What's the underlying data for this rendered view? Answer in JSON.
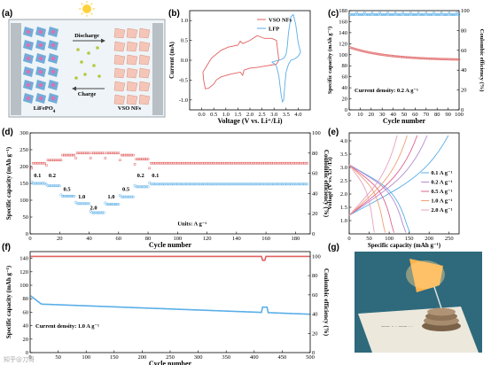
{
  "panels": {
    "a": "(a)",
    "b": "(b)",
    "c": "(c)",
    "d": "(d)",
    "e": "(e)",
    "f": "(f)",
    "g": "(g)"
  },
  "schematic": {
    "left_label": "LiFePO",
    "left_sub": "4",
    "right_label": "VSO NFs",
    "discharge": "Discharge",
    "charge": "Charge",
    "colors": {
      "left": "#5a9fd4",
      "right": "#f5c6b8",
      "frame": "#9aa3a8",
      "bg": "#eef4f7",
      "sun": "#ffd23c"
    }
  },
  "photo": {
    "colors": {
      "table": "#2e6a7c",
      "paper": "#ece8dc",
      "lamp": "#ffb34d",
      "disc": "#a88c6e"
    }
  },
  "watermark": "知乎@刀哥",
  "chart_data": [
    {
      "id": "b",
      "type": "line",
      "xlabel": "Voltage (V vs. Li⁺/Li)",
      "ylabel": "Current (mA)",
      "xlim": [
        -0.5,
        4.5
      ],
      "ylim": [
        -1.25,
        1.25
      ],
      "xticks": [
        "0.0",
        "0.5",
        "1.0",
        "1.5",
        "2.0",
        "2.5",
        "3.0",
        "3.5",
        "4.0"
      ],
      "xtick_vals": [
        0,
        0.5,
        1,
        1.5,
        2,
        2.5,
        3,
        3.5,
        4
      ],
      "yticks": [
        "-1.0",
        "-0.5",
        "0.0",
        "0.5",
        "1.0"
      ],
      "ytick_vals": [
        -1,
        -0.5,
        0,
        0.5,
        1
      ],
      "series": [
        {
          "name": "VSO NFs",
          "color": "#e06060",
          "x": [
            0.05,
            0.2,
            0.4,
            0.8,
            1.1,
            1.5,
            1.6,
            1.7,
            2.0,
            2.3,
            2.6,
            2.9,
            3.1,
            3.2,
            3.1,
            2.9,
            2.6,
            2.3,
            2.0,
            1.75,
            1.7,
            1.6,
            1.2,
            0.8,
            0.6,
            0.5,
            0.3,
            0.15,
            0.08,
            0.05
          ],
          "y": [
            -0.3,
            -0.15,
            0.05,
            0.25,
            0.33,
            0.38,
            0.48,
            0.42,
            0.5,
            0.62,
            0.55,
            0.55,
            0.5,
            0.0,
            -0.1,
            -0.12,
            -0.15,
            -0.18,
            -0.2,
            -0.25,
            -0.38,
            -0.3,
            -0.35,
            -0.42,
            -0.5,
            -0.6,
            -0.7,
            -0.72,
            -0.5,
            -0.3
          ]
        },
        {
          "name": "LFP",
          "color": "#5aaee8",
          "x": [
            2.9,
            3.0,
            3.2,
            3.3,
            3.4,
            3.5,
            3.55,
            3.6,
            3.7,
            3.8,
            3.9,
            4.0,
            4.1,
            4.0,
            3.9,
            3.8,
            3.7,
            3.6,
            3.5,
            3.45,
            3.4,
            3.35,
            3.3,
            3.2,
            3.1,
            3.0,
            2.9
          ],
          "y": [
            -0.05,
            -0.03,
            0.0,
            0.02,
            0.05,
            0.15,
            0.35,
            0.7,
            1.1,
            1.15,
            0.9,
            0.45,
            0.2,
            0.1,
            0.05,
            0.02,
            0.0,
            -0.1,
            -0.3,
            -0.6,
            -1.0,
            -1.05,
            -0.9,
            -0.4,
            -0.15,
            -0.08,
            -0.05
          ]
        }
      ],
      "legend_pos": "top-right"
    },
    {
      "id": "c",
      "type": "scatter",
      "xlabel": "Cycle number",
      "ylabel": "Specific capacity (mAh g⁻¹)",
      "y2label": "Coulombic efficiency (%)",
      "xlim": [
        0,
        100
      ],
      "ylim": [
        0,
        180
      ],
      "y2lim": [
        0,
        100
      ],
      "xticks": [
        "0",
        "10",
        "20",
        "30",
        "40",
        "50",
        "60",
        "70",
        "80",
        "90",
        "100"
      ],
      "xtick_vals": [
        0,
        10,
        20,
        30,
        40,
        50,
        60,
        70,
        80,
        90,
        100
      ],
      "yticks": [
        "0",
        "20",
        "40",
        "60",
        "80",
        "100",
        "120",
        "140",
        "160",
        "180"
      ],
      "ytick_vals": [
        0,
        20,
        40,
        60,
        80,
        100,
        120,
        140,
        160,
        180
      ],
      "y2ticks": [
        "0",
        "20",
        "40",
        "60",
        "80",
        "100"
      ],
      "y2tick_vals": [
        0,
        20,
        40,
        60,
        80,
        100
      ],
      "annotation": "Current density: 0.2 A g⁻¹",
      "capacity": {
        "color": "#e06060",
        "start": 113,
        "end": 90,
        "n": 100
      },
      "efficiency": {
        "color": "#5aaee8",
        "value": 96,
        "n": 100
      }
    },
    {
      "id": "d",
      "type": "scatter",
      "xlabel": "Cycle number",
      "ylabel": "Specific capacity (mAh g⁻¹)",
      "y2label": "Coulombic efficiency (%)",
      "xlim": [
        0,
        190
      ],
      "ylim": [
        0,
        300
      ],
      "y2lim": [
        0,
        100
      ],
      "xticks": [
        "0",
        "20",
        "40",
        "60",
        "80",
        "100",
        "120",
        "140",
        "160",
        "180"
      ],
      "xtick_vals": [
        0,
        20,
        40,
        60,
        80,
        100,
        120,
        140,
        160,
        180
      ],
      "yticks": [
        "0",
        "50",
        "100",
        "150",
        "200",
        "250",
        "300"
      ],
      "ytick_vals": [
        0,
        50,
        100,
        150,
        200,
        250,
        300
      ],
      "y2ticks": [
        "0",
        "20",
        "40",
        "60",
        "80",
        "100"
      ],
      "y2tick_vals": [
        0,
        20,
        40,
        60,
        80,
        100
      ],
      "annotation": "Units: A g⁻¹",
      "rate_labels": [
        {
          "text": "0.1",
          "x": 5,
          "y": 168
        },
        {
          "text": "0.2",
          "x": 15,
          "y": 168
        },
        {
          "text": "0.5",
          "x": 25,
          "y": 127
        },
        {
          "text": "1.0",
          "x": 35,
          "y": 105
        },
        {
          "text": "2.0",
          "x": 43,
          "y": 72
        },
        {
          "text": "1.0",
          "x": 55,
          "y": 105
        },
        {
          "text": "0.5",
          "x": 65,
          "y": 127
        },
        {
          "text": "0.2",
          "x": 75,
          "y": 168
        },
        {
          "text": "0.1",
          "x": 85,
          "y": 168
        }
      ],
      "capacity_segments": [
        {
          "from": 1,
          "to": 10,
          "value": 150
        },
        {
          "from": 11,
          "to": 20,
          "value": 143
        },
        {
          "from": 21,
          "to": 30,
          "value": 112
        },
        {
          "from": 31,
          "to": 40,
          "value": 90
        },
        {
          "from": 41,
          "to": 50,
          "value": 63
        },
        {
          "from": 51,
          "to": 60,
          "value": 88
        },
        {
          "from": 61,
          "to": 70,
          "value": 110
        },
        {
          "from": 71,
          "to": 80,
          "value": 140
        },
        {
          "from": 81,
          "to": 188,
          "value": 148
        }
      ],
      "efficiency_segments": [
        {
          "from": 1,
          "to": 10,
          "value": 70
        },
        {
          "from": 11,
          "to": 20,
          "value": 73
        },
        {
          "from": 21,
          "to": 30,
          "value": 78
        },
        {
          "from": 31,
          "to": 40,
          "value": 80
        },
        {
          "from": 41,
          "to": 50,
          "value": 80
        },
        {
          "from": 51,
          "to": 60,
          "value": 80
        },
        {
          "from": 61,
          "to": 70,
          "value": 78
        },
        {
          "from": 71,
          "to": 80,
          "value": 74
        },
        {
          "from": 81,
          "to": 188,
          "value": 70
        }
      ],
      "cap_color": "#5aaee8",
      "eff_color": "#e06060"
    },
    {
      "id": "e",
      "type": "line",
      "xlabel": "Specific capacity (mAh g⁻¹)",
      "ylabel": "Voltage (V vs. Li⁺/Li)",
      "xlim": [
        0,
        275
      ],
      "ylim": [
        0.5,
        4.3
      ],
      "xticks": [
        "0",
        "50",
        "100",
        "150",
        "200",
        "250"
      ],
      "xtick_vals": [
        0,
        50,
        100,
        150,
        200,
        250
      ],
      "yticks": [
        "1.0",
        "1.5",
        "2.0",
        "2.5",
        "3.0",
        "3.5",
        "4.0"
      ],
      "ytick_vals": [
        1,
        1.5,
        2,
        2.5,
        3,
        3.5,
        4
      ],
      "series": [
        {
          "name": "0.1 A g⁻¹",
          "color": "#5aaee8",
          "cap": 152,
          "charge_end": 248
        },
        {
          "name": "0.2 A g⁻¹",
          "color": "#b48ad0",
          "cap": 142,
          "charge_end": 195
        },
        {
          "name": "0.5 A g⁻¹",
          "color": "#e06090",
          "cap": 112,
          "charge_end": 170
        },
        {
          "name": "1.0 A g⁻¹",
          "color": "#f0a070",
          "cap": 90,
          "charge_end": 145
        },
        {
          "name": "2.0 A g⁻¹",
          "color": "#e8a0c0",
          "cap": 63,
          "charge_end": 120
        }
      ],
      "legend_pos": "right"
    },
    {
      "id": "f",
      "type": "scatter",
      "xlabel": "Cycle number",
      "ylabel": "Specific capacity (mAh g⁻¹)",
      "y2label": "Coulombic efficiency (%)",
      "xlim": [
        0,
        500
      ],
      "ylim": [
        0,
        150
      ],
      "y2lim": [
        0,
        105
      ],
      "xticks": [
        "0",
        "50",
        "100",
        "150",
        "200",
        "250",
        "300",
        "350",
        "400",
        "450",
        "500"
      ],
      "xtick_vals": [
        0,
        50,
        100,
        150,
        200,
        250,
        300,
        350,
        400,
        450,
        500
      ],
      "yticks": [
        "0",
        "20",
        "40",
        "60",
        "80",
        "100",
        "120",
        "140"
      ],
      "ytick_vals": [
        0,
        20,
        40,
        60,
        80,
        100,
        120,
        140
      ],
      "y2ticks": [
        "0",
        "20",
        "40",
        "60",
        "80",
        "100"
      ],
      "y2tick_vals": [
        0,
        20,
        40,
        60,
        80,
        100
      ],
      "annotation": "Current density: 1.0 A g⁻¹",
      "capacity": {
        "color": "#5aaee8",
        "start": 85,
        "mid": 70,
        "end": 57,
        "n": 500
      },
      "efficiency": {
        "color": "#e06060",
        "value": 100,
        "n": 500
      }
    }
  ]
}
